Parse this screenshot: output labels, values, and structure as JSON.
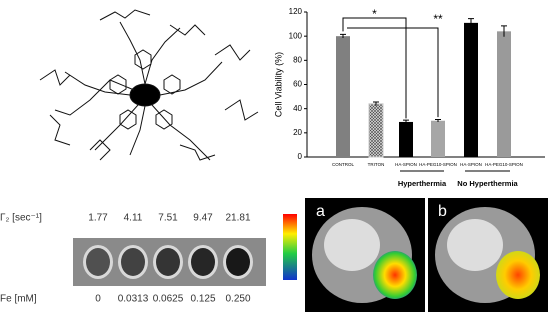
{
  "chart_data": {
    "type": "bar",
    "ylabel": "Cell Viability (%)",
    "categories": [
      "CONTROL",
      "TRITON",
      "HA-SPION",
      "HA-PEG10-SPION",
      "HA-SPION",
      "HA-PEG10-SPION"
    ],
    "values": [
      100,
      44,
      29,
      30,
      111,
      104
    ],
    "errors": [
      1.5,
      1.5,
      1.5,
      1,
      3.5,
      4.5
    ],
    "colors": [
      "#808080",
      "#c8c8c8",
      "#000000",
      "#a6a6a6",
      "#000000",
      "#9a9a9a"
    ],
    "hatched": [
      false,
      true,
      false,
      false,
      false,
      false
    ],
    "ylim": [
      0,
      120
    ],
    "yticks": [
      0,
      20,
      40,
      60,
      80,
      100,
      120
    ],
    "grid": false,
    "groups": [
      "Hyperthermia",
      "No Hyperthermia"
    ],
    "significance": [
      "*",
      "**"
    ]
  },
  "phantom": {
    "r2_label": "Γ₂ [sec⁻¹]",
    "r2_values": [
      "1.77",
      "4.11",
      "7.51",
      "9.47",
      "21.81"
    ],
    "fe_label": "Fe [mM]",
    "fe_values": [
      "0",
      "0.0313",
      "0.0625",
      "0.125",
      "0.250"
    ]
  },
  "mri": {
    "panels": [
      "a",
      "b"
    ]
  }
}
